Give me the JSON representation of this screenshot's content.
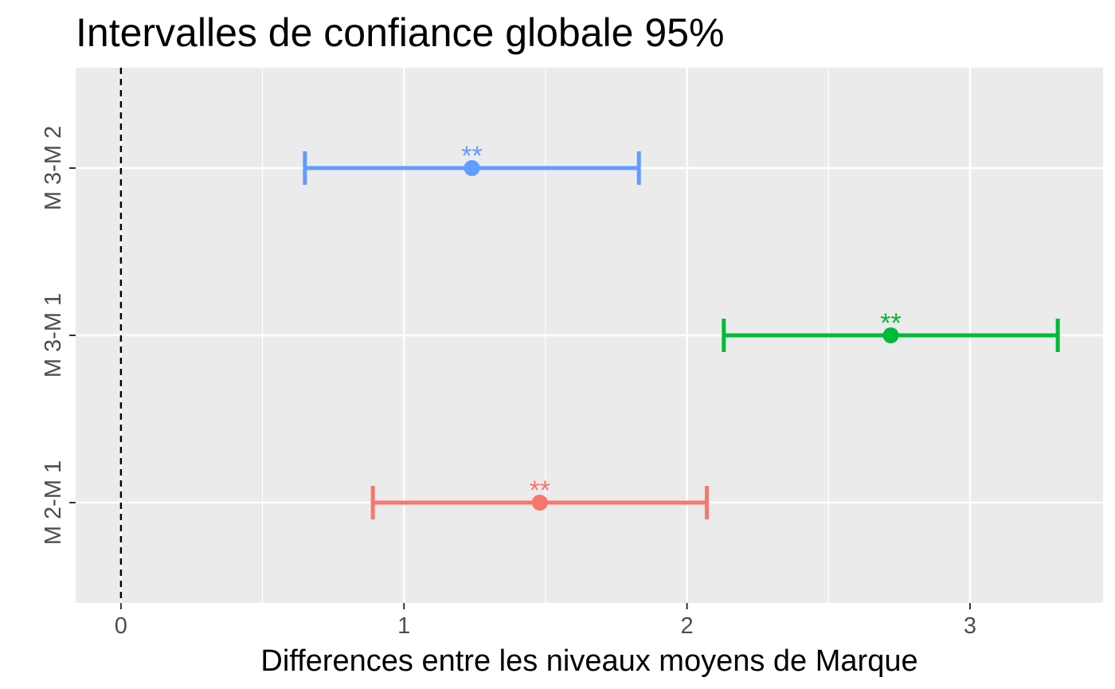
{
  "chart_data": {
    "type": "scatter",
    "title": "Intervalles de confiance globale 95%",
    "xlabel": "Differences entre les niveaux moyens de Marque",
    "ylabel": "",
    "xlim": [
      -0.16,
      3.47
    ],
    "x_ticks": [
      0,
      1,
      2,
      3
    ],
    "x_tick_labels": [
      "0",
      "1",
      "2",
      "3"
    ],
    "reference_line": {
      "x": 0,
      "style": "dashed"
    },
    "grid": true,
    "legend": "none",
    "categories": [
      "M 3-M 2",
      "M 3-M 1",
      "M 2-M 1"
    ],
    "series": [
      {
        "category": "M 3-M 2",
        "estimate": 1.24,
        "lower": 0.65,
        "upper": 1.83,
        "significance": "**",
        "color": "#619CFF"
      },
      {
        "category": "M 3-M 1",
        "estimate": 2.72,
        "lower": 2.13,
        "upper": 3.31,
        "significance": "**",
        "color": "#00BA38"
      },
      {
        "category": "M 2-M 1",
        "estimate": 1.48,
        "lower": 0.89,
        "upper": 2.07,
        "significance": "**",
        "color": "#F8766D"
      }
    ]
  }
}
